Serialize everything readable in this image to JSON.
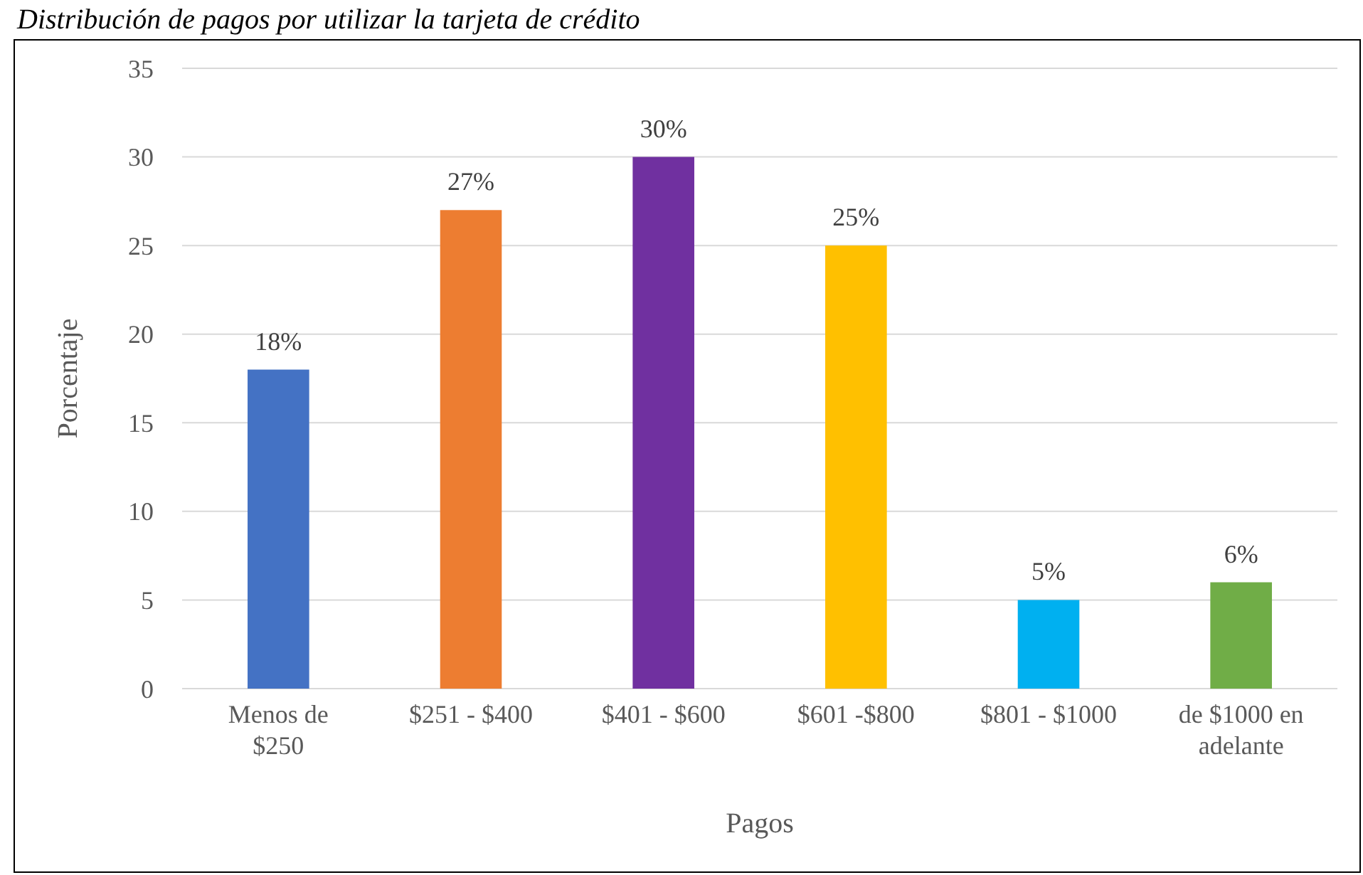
{
  "chart_data": {
    "type": "bar",
    "title": "Distribución de pagos por utilizar la tarjeta de crédito",
    "xlabel": "Pagos",
    "ylabel": "Porcentaje",
    "categories": [
      "Menos de $250",
      "$251 - $400",
      "$401 - $600",
      "$601 -$800",
      "$801 - $1000",
      "de $1000 en adelante"
    ],
    "values": [
      18,
      27,
      30,
      25,
      5,
      6
    ],
    "colors": [
      "#4472c4",
      "#ed7d31",
      "#7030a0",
      "#ffc000",
      "#00b0f0",
      "#70ad47"
    ],
    "value_labels": [
      "18%",
      "27%",
      "30%",
      "25%",
      "5%",
      "6%"
    ],
    "ylim": [
      0,
      35
    ],
    "yticks": [
      0,
      5,
      10,
      15,
      20,
      25,
      30,
      35
    ],
    "grid": "y"
  }
}
